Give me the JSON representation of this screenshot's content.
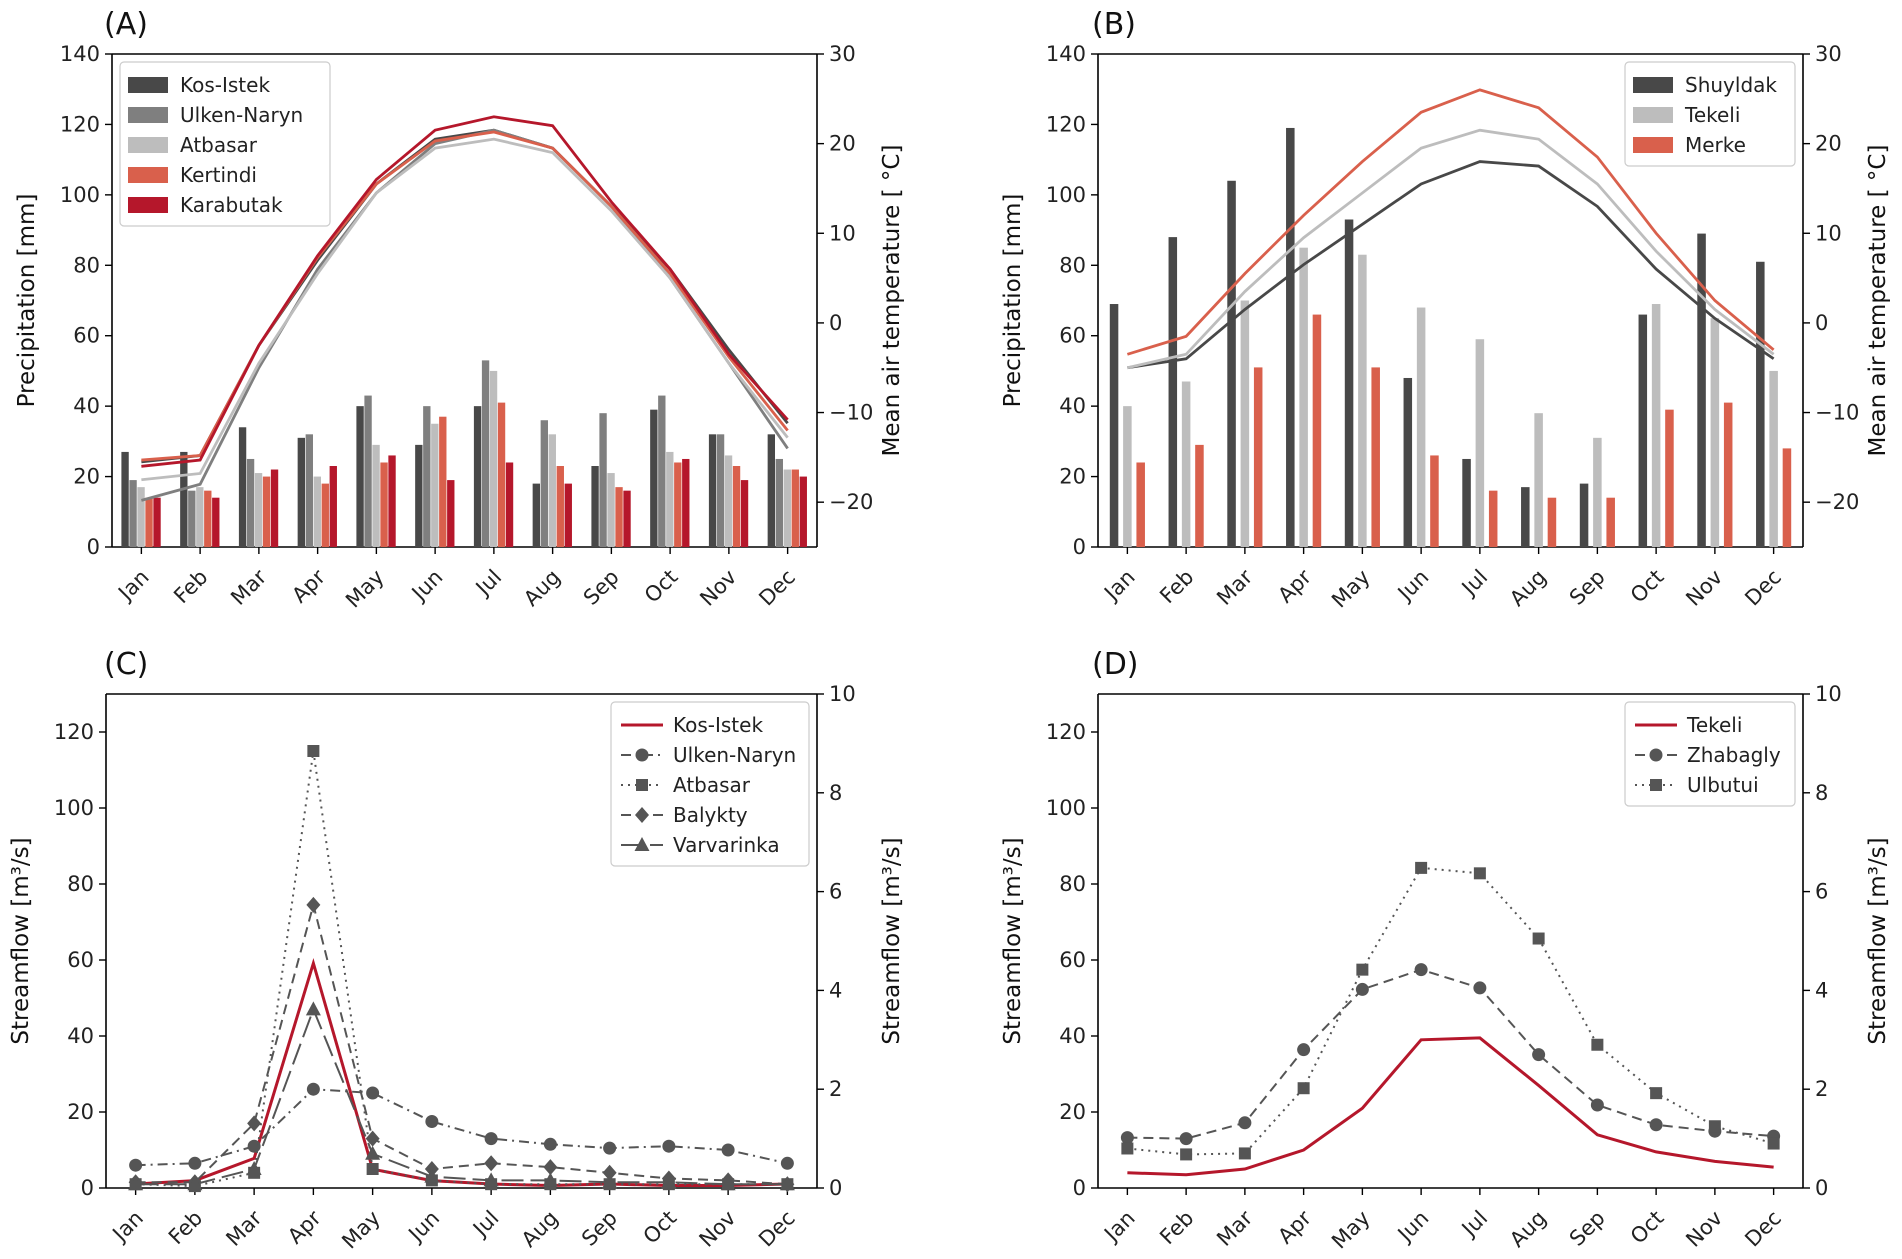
{
  "months": [
    "Jan",
    "Feb",
    "Mar",
    "Apr",
    "May",
    "Jun",
    "Jul",
    "Aug",
    "Sep",
    "Oct",
    "Nov",
    "Dec"
  ],
  "colors": {
    "darkgray": "#484848",
    "gray": "#7f7f7f",
    "lightgray": "#bdbdbd",
    "salmon": "#d9604c",
    "crimson": "#b5172b",
    "red": "#b5172b",
    "flowgray": "#555555"
  },
  "chart_data": [
    {
      "id": "A",
      "panel_label": "(A)",
      "type": "bar+line",
      "ylabel": "Precipitation [mm]",
      "y2label": "Mean air temperature [ °C]",
      "ylim": [
        0,
        140
      ],
      "y2lim": [
        -25,
        30
      ],
      "yticks": [
        0,
        20,
        40,
        60,
        80,
        100,
        120,
        140
      ],
      "y2ticks": [
        -20,
        -10,
        0,
        10,
        20,
        30
      ],
      "legend": "top-left",
      "series": [
        {
          "name": "Kos-Istek",
          "color": "#484848",
          "precip": [
            27,
            27,
            34,
            31,
            40,
            29,
            40,
            18,
            23,
            39,
            32,
            32
          ],
          "temp": [
            -15.5,
            -14.8,
            -2.5,
            7,
            15.5,
            20.5,
            21.5,
            19.5,
            13,
            6,
            -3,
            -11.2
          ]
        },
        {
          "name": "Ulken-Naryn",
          "color": "#7f7f7f",
          "precip": [
            19,
            16,
            25,
            32,
            43,
            40,
            53,
            36,
            38,
            43,
            32,
            25
          ],
          "temp": [
            -19.8,
            -18,
            -5,
            6,
            14.5,
            20,
            21.5,
            19.5,
            13,
            5,
            -4.5,
            -14
          ]
        },
        {
          "name": "Atbasar",
          "color": "#bdbdbd",
          "precip": [
            17,
            17,
            21,
            20,
            29,
            35,
            50,
            32,
            21,
            27,
            26,
            22
          ],
          "temp": [
            -17.5,
            -16.8,
            -4.5,
            5.5,
            14.5,
            19.5,
            20.5,
            19,
            12.5,
            5,
            -4.5,
            -12.8
          ]
        },
        {
          "name": "Kertindi",
          "color": "#d9604c",
          "precip": [
            14,
            16,
            20,
            18,
            24,
            37,
            41,
            23,
            17,
            24,
            23,
            22
          ],
          "temp": [
            -15.3,
            -14.8,
            -2.5,
            7.3,
            15.5,
            20.3,
            21.3,
            19.5,
            13,
            5.5,
            -3.8,
            -12
          ]
        },
        {
          "name": "Karabutak",
          "color": "#b5172b",
          "precip": [
            14,
            14,
            22,
            23,
            26,
            19,
            24,
            18,
            16,
            25,
            19,
            20
          ],
          "temp": [
            -16,
            -15.3,
            -2.5,
            7.5,
            16,
            21.5,
            23,
            22,
            13.5,
            6,
            -3.5,
            -10.8
          ]
        }
      ]
    },
    {
      "id": "B",
      "panel_label": "(B)",
      "type": "bar+line",
      "ylabel": "Precipitation [mm]",
      "y2label": "Mean air temperature [ °C]",
      "ylim": [
        0,
        140
      ],
      "y2lim": [
        -25,
        30
      ],
      "yticks": [
        0,
        20,
        40,
        60,
        80,
        100,
        120,
        140
      ],
      "y2ticks": [
        -20,
        -10,
        0,
        10,
        20,
        30
      ],
      "legend": "top-right",
      "series": [
        {
          "name": "Shuyldak",
          "color": "#484848",
          "precip": [
            69,
            88,
            104,
            119,
            93,
            48,
            25,
            17,
            18,
            66,
            89,
            81
          ],
          "temp": [
            -5,
            -4,
            1.5,
            6.5,
            11,
            15.5,
            18,
            17.5,
            13,
            6,
            0.5,
            -4
          ]
        },
        {
          "name": "Tekeli",
          "color": "#bdbdbd",
          "precip": [
            40,
            47,
            70,
            85,
            83,
            68,
            59,
            38,
            31,
            69,
            65,
            50
          ],
          "temp": [
            -5,
            -3.5,
            3.5,
            9.5,
            14.5,
            19.5,
            21.5,
            20.5,
            15.5,
            8,
            1.5,
            -3.5
          ]
        },
        {
          "name": "Merke",
          "color": "#d9604c",
          "precip": [
            24,
            29,
            51,
            66,
            51,
            26,
            16,
            14,
            14,
            39,
            41,
            28
          ],
          "temp": [
            -3.5,
            -1.5,
            5.5,
            12,
            18,
            23.5,
            26,
            24,
            18.5,
            10,
            2.5,
            -3
          ]
        }
      ]
    },
    {
      "id": "C",
      "panel_label": "(C)",
      "type": "line",
      "ylabel": "Streamflow [m³/s]",
      "y2label": "Streamflow [m³/s]",
      "ylim": [
        0,
        130
      ],
      "y2lim": [
        0,
        10
      ],
      "yticks": [
        0,
        20,
        40,
        60,
        80,
        100,
        120
      ],
      "y2ticks": [
        0,
        2,
        4,
        6,
        8,
        10
      ],
      "legend": "top-right",
      "series": [
        {
          "name": "Kos-Istek",
          "axis": "right",
          "style": "solid",
          "marker": "none",
          "values": [
            0.08,
            0.15,
            0.6,
            4.55,
            0.38,
            0.15,
            0.08,
            0.05,
            0.08,
            0.05,
            0.05,
            0.08
          ]
        },
        {
          "name": "Ulken-Naryn",
          "axis": "left",
          "style": "dashdot",
          "marker": "circle",
          "values": [
            6,
            6.5,
            11,
            26,
            25,
            17.5,
            13,
            11.5,
            10.5,
            11,
            10,
            6.5
          ]
        },
        {
          "name": "Atbasar",
          "axis": "left",
          "style": "dotted",
          "marker": "square",
          "values": [
            1,
            0.5,
            4,
            115,
            5,
            2,
            1,
            1,
            1,
            1,
            1,
            1
          ]
        },
        {
          "name": "Balykty",
          "axis": "left",
          "style": "dashed",
          "marker": "diamond",
          "values": [
            1.5,
            1.5,
            17,
            74.5,
            13,
            5,
            6.5,
            5.5,
            4,
            2.5,
            2,
            1
          ]
        },
        {
          "name": "Varvarinka",
          "axis": "left",
          "style": "longdash",
          "marker": "triangle",
          "values": [
            1,
            1,
            5,
            47,
            9,
            3,
            2,
            2,
            1.5,
            1.5,
            1,
            1
          ]
        }
      ]
    },
    {
      "id": "D",
      "panel_label": "(D)",
      "type": "line",
      "ylabel": "Streamflow [m³/s]",
      "y2label": "Streamflow [m³/s]",
      "ylim": [
        0,
        130
      ],
      "y2lim": [
        0,
        10
      ],
      "yticks": [
        0,
        20,
        40,
        60,
        80,
        100,
        120
      ],
      "y2ticks": [
        0,
        2,
        4,
        6,
        8,
        10
      ],
      "legend": "top-right",
      "series": [
        {
          "name": "Tekeli",
          "axis": "left",
          "style": "solid",
          "marker": "none",
          "values": [
            4,
            3.5,
            5,
            10,
            21,
            39,
            39.5,
            27,
            14,
            9.5,
            7,
            5.5
          ]
        },
        {
          "name": "Zhabagly",
          "axis": "right",
          "style": "dashed",
          "marker": "circle",
          "values": [
            1.02,
            1.0,
            1.32,
            2.8,
            4.02,
            4.42,
            4.05,
            2.7,
            1.68,
            1.28,
            1.15,
            1.05
          ]
        },
        {
          "name": "Ulbutui",
          "axis": "right",
          "style": "dotted",
          "marker": "square",
          "values": [
            0.8,
            0.68,
            0.7,
            2.02,
            4.42,
            6.48,
            6.37,
            5.05,
            2.9,
            1.92,
            1.25,
            0.9
          ]
        }
      ]
    }
  ]
}
